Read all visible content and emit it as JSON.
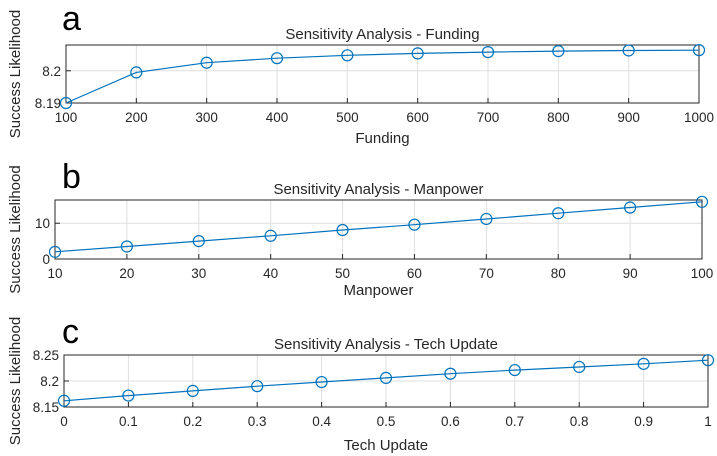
{
  "colors": {
    "series": "#0072bd",
    "axes": "#262626",
    "grid": "#dfdfdf"
  },
  "chart_data": [
    {
      "panel": "a",
      "type": "line",
      "title": "Sensitivity Analysis - Funding",
      "xlabel": "Funding",
      "ylabel": "Success Likelihood",
      "grid": true,
      "marker": "circle",
      "xlim": [
        100,
        1000
      ],
      "ylim": [
        8.19,
        8.208
      ],
      "xticks": [
        100,
        200,
        300,
        400,
        500,
        600,
        700,
        800,
        900,
        1000
      ],
      "xtick_labels": [
        "100",
        "200",
        "300",
        "400",
        "500",
        "600",
        "700",
        "800",
        "900",
        "1000"
      ],
      "yticks": [
        8.19,
        8.2
      ],
      "ytick_labels": [
        "8.19",
        "8.2"
      ],
      "x": [
        100,
        200,
        300,
        400,
        500,
        600,
        700,
        800,
        900,
        1000
      ],
      "y": [
        8.19,
        8.1995,
        8.2025,
        8.2039,
        8.2048,
        8.2054,
        8.2058,
        8.2061,
        8.2063,
        8.2064
      ]
    },
    {
      "panel": "b",
      "type": "line",
      "title": "Sensitivity Analysis - Manpower",
      "xlabel": "Manpower",
      "ylabel": "Success Likelihood",
      "grid": true,
      "marker": "circle",
      "xlim": [
        10,
        100
      ],
      "ylim": [
        0,
        16.5
      ],
      "xticks": [
        10,
        20,
        30,
        40,
        50,
        60,
        70,
        80,
        90,
        100
      ],
      "xtick_labels": [
        "10",
        "20",
        "30",
        "40",
        "50",
        "60",
        "70",
        "80",
        "90",
        "100"
      ],
      "yticks": [
        0,
        10
      ],
      "ytick_labels": [
        "0",
        "10"
      ],
      "x": [
        10,
        20,
        30,
        40,
        50,
        60,
        70,
        80,
        90,
        100
      ],
      "y": [
        2.0,
        3.5,
        5.0,
        6.5,
        8.1,
        9.6,
        11.2,
        12.8,
        14.4,
        16.0
      ]
    },
    {
      "panel": "c",
      "type": "line",
      "title": "Sensitivity Analysis - Tech Update",
      "xlabel": "Tech Update",
      "ylabel": "Success Likelihood",
      "grid": true,
      "marker": "circle",
      "xlim": [
        0,
        1
      ],
      "ylim": [
        8.15,
        8.25
      ],
      "xticks": [
        0,
        0.1,
        0.2,
        0.3,
        0.4,
        0.5,
        0.6,
        0.7,
        0.8,
        0.9,
        1
      ],
      "xtick_labels": [
        "0",
        "0.1",
        "0.2",
        "0.3",
        "0.4",
        "0.5",
        "0.6",
        "0.7",
        "0.8",
        "0.9",
        "1"
      ],
      "yticks": [
        8.15,
        8.2,
        8.25
      ],
      "ytick_labels": [
        "8.15",
        "8.2",
        "8.25"
      ],
      "x": [
        0,
        0.1,
        0.2,
        0.3,
        0.4,
        0.5,
        0.6,
        0.7,
        0.8,
        0.9,
        1
      ],
      "y": [
        8.162,
        8.172,
        8.181,
        8.19,
        8.198,
        8.206,
        8.214,
        8.221,
        8.227,
        8.233,
        8.24
      ]
    }
  ]
}
